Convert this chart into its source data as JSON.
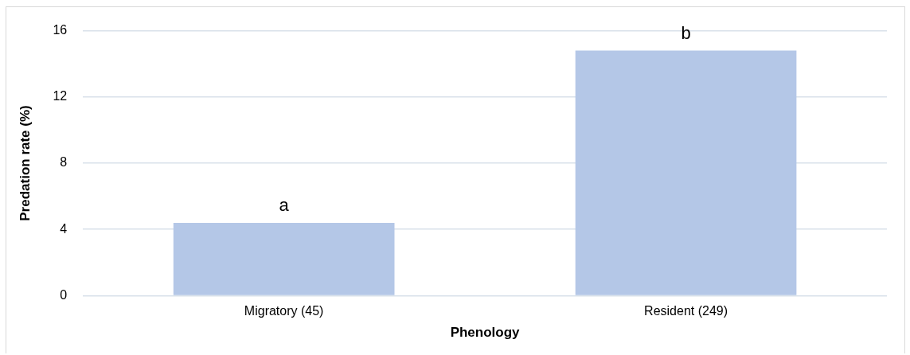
{
  "chart_data": {
    "type": "bar",
    "xlabel": "Phenology",
    "ylabel": "Predation rate (%)",
    "categories": [
      "Migratory (45)",
      "Resident (249)"
    ],
    "values": [
      4.4,
      14.8
    ],
    "color": "#b4c7e7",
    "ylim": [
      0,
      16
    ],
    "yticks": [
      0,
      4,
      8,
      12,
      16
    ],
    "grid": "y",
    "annotations": [
      {
        "text": "a",
        "x": "Migratory (45)",
        "y": 4.4
      },
      {
        "text": "b",
        "x": "Resident (249)",
        "y": 14.8
      }
    ]
  }
}
